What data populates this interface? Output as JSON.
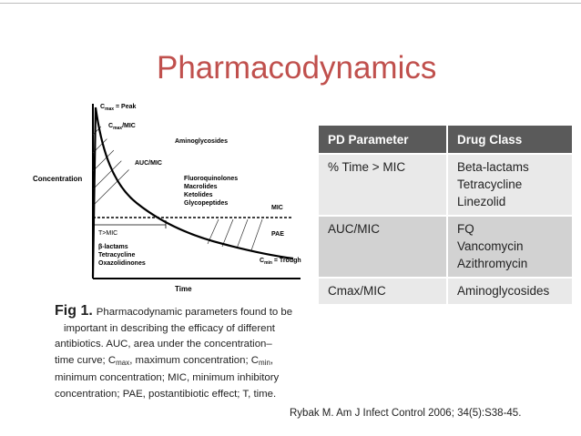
{
  "title": "Pharmacodynamics",
  "diagram": {
    "y_axis_label": "Concentration",
    "x_axis_label": "Time",
    "peak_label": "C",
    "peak_sub": "max",
    "peak_suffix": " = Peak",
    "cmaxmic_label": "C",
    "cmaxmic_sub": "max",
    "cmaxmic_suffix": "/MIC",
    "aminoglycosides": "Aminoglycosides",
    "aucmic": "AUC/MIC",
    "fq_group": [
      "Fluoroquinolones",
      "Macrolides",
      "Ketolides",
      "Glycopeptides"
    ],
    "mic": "MIC",
    "tmic": "T>MIC",
    "betalactam_group": [
      "β-lactams",
      "Tetracycline",
      "Oxazolidinones"
    ],
    "pae": "PAE",
    "trough_label": "C",
    "trough_sub": "min",
    "trough_suffix": " = Trough"
  },
  "caption": {
    "fig": "Fig 1.",
    "l1": "Pharmacodynamic parameters found to be",
    "l2": "important in describing the efficacy of different",
    "l3": "antibiotics. AUC, area under the concentration–",
    "l4a": "time curve; C",
    "l4sub": "max",
    "l4b": ", maximum concentration; C",
    "l4sub2": "min",
    "l4c": ",",
    "l5": "minimum concentration; MIC, minimum inhibitory",
    "l6": "concentration; PAE, postantibiotic effect; T, time."
  },
  "table": {
    "headers": [
      "PD Parameter",
      "Drug Class"
    ],
    "rows": [
      {
        "param": "% Time > MIC",
        "classes": [
          "Beta-lactams",
          "Tetracycline",
          "Linezolid"
        ]
      },
      {
        "param": "AUC/MIC",
        "classes": [
          "FQ",
          "Vancomycin",
          "Azithromycin"
        ]
      },
      {
        "param": "Cmax/MIC",
        "classes": [
          "Aminoglycosides"
        ]
      }
    ]
  },
  "citation": "Rybak M. Am J Infect Control 2006; 34(5):S38-45."
}
